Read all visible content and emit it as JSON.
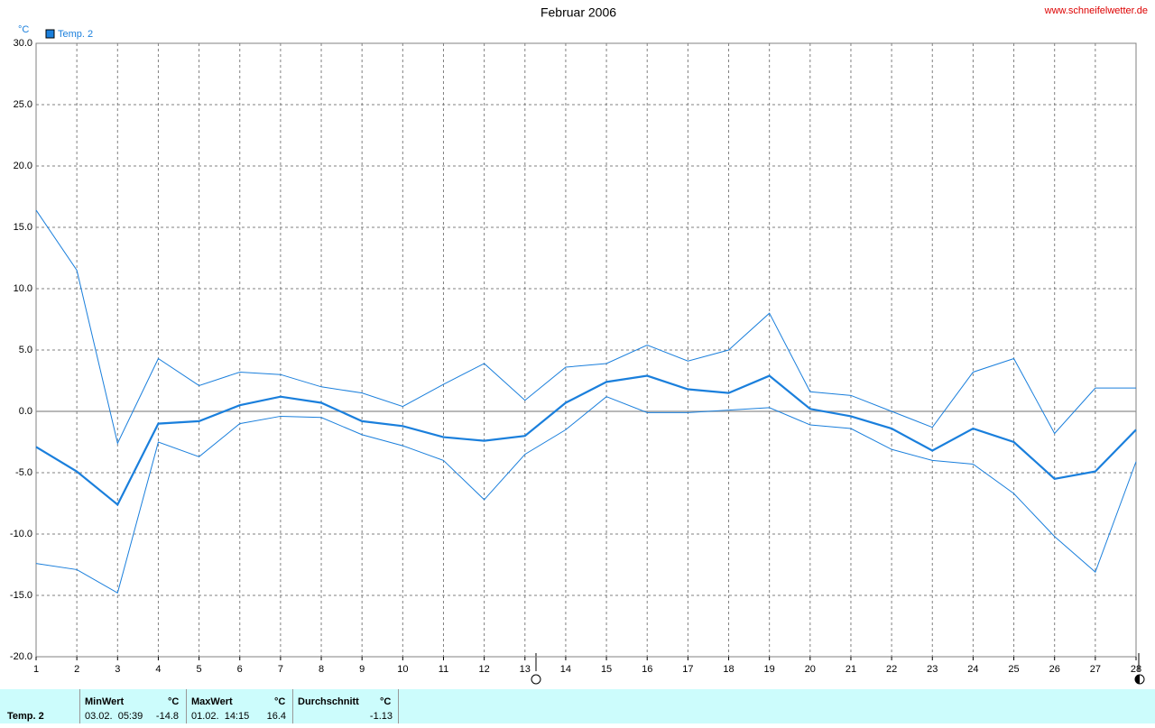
{
  "chart_data": {
    "type": "line",
    "title": "Februar 2006",
    "source": "www.schneifelwetter.de",
    "y_label": "°C",
    "legend": "Temp. 2",
    "legend_color": "#1a7fdc",
    "x": [
      1,
      2,
      3,
      4,
      5,
      6,
      7,
      8,
      9,
      10,
      11,
      12,
      13,
      14,
      15,
      16,
      17,
      18,
      19,
      20,
      21,
      22,
      23,
      24,
      25,
      26,
      27,
      28
    ],
    "xlim": [
      1,
      28
    ],
    "ylim": [
      -20,
      30
    ],
    "yticks": [
      {
        "value": -20,
        "label": "-20.0"
      },
      {
        "value": -15,
        "label": "-15.0"
      },
      {
        "value": -10,
        "label": "-10.0"
      },
      {
        "value": -5,
        "label": "-5.0"
      },
      {
        "value": 0,
        "label": "0.0"
      },
      {
        "value": 5,
        "label": "5.0"
      },
      {
        "value": 10,
        "label": "10.0"
      },
      {
        "value": 15,
        "label": "15.0"
      },
      {
        "value": 20,
        "label": "20.0"
      },
      {
        "value": 25,
        "label": "25.0"
      },
      {
        "value": 30,
        "label": "30.0"
      }
    ],
    "grid": true,
    "series": [
      {
        "color": "#1a7fdc",
        "width": 2.2,
        "values": [
          -2.9,
          -4.9,
          -7.6,
          -1.0,
          -0.8,
          0.5,
          1.2,
          0.7,
          -0.8,
          -1.2,
          -2.1,
          -2.4,
          -2.0,
          0.7,
          2.4,
          2.9,
          1.8,
          1.5,
          2.9,
          0.2,
          -0.4,
          -1.4,
          -3.2,
          -1.4,
          -2.5,
          -5.5,
          -4.9,
          -1.5
        ]
      },
      {
        "color": "#1a7fdc",
        "width": 1,
        "values": [
          16.4,
          11.5,
          -2.6,
          4.3,
          2.1,
          3.2,
          3.0,
          2.0,
          1.5,
          0.4,
          2.2,
          3.9,
          0.9,
          3.6,
          3.9,
          5.4,
          4.1,
          5.0,
          8.0,
          1.6,
          1.3,
          0.0,
          -1.3,
          3.2,
          4.3,
          -1.8,
          1.9,
          1.9
        ]
      },
      {
        "color": "#1a7fdc",
        "width": 1,
        "values": [
          -12.4,
          -12.9,
          -14.8,
          -2.5,
          -3.7,
          -1.0,
          -0.4,
          -0.5,
          -1.9,
          -2.8,
          -4.0,
          -7.2,
          -3.5,
          -1.5,
          1.2,
          -0.1,
          -0.1,
          0.1,
          0.3,
          -1.1,
          -1.4,
          -3.1,
          -4.0,
          -4.3,
          -6.7,
          -10.2,
          -13.1,
          -4.1
        ]
      }
    ]
  },
  "stats": {
    "name": "Temp. 2",
    "min": {
      "label": "MinWert",
      "unit": "°C",
      "when": "03.02.  05:39",
      "value": "-14.8"
    },
    "max": {
      "label": "MaxWert",
      "unit": "°C",
      "when": "01.02.  14:15",
      "value": "16.4"
    },
    "avg": {
      "label": "Durchschnitt",
      "unit": "°C",
      "value": "-1.13"
    }
  }
}
